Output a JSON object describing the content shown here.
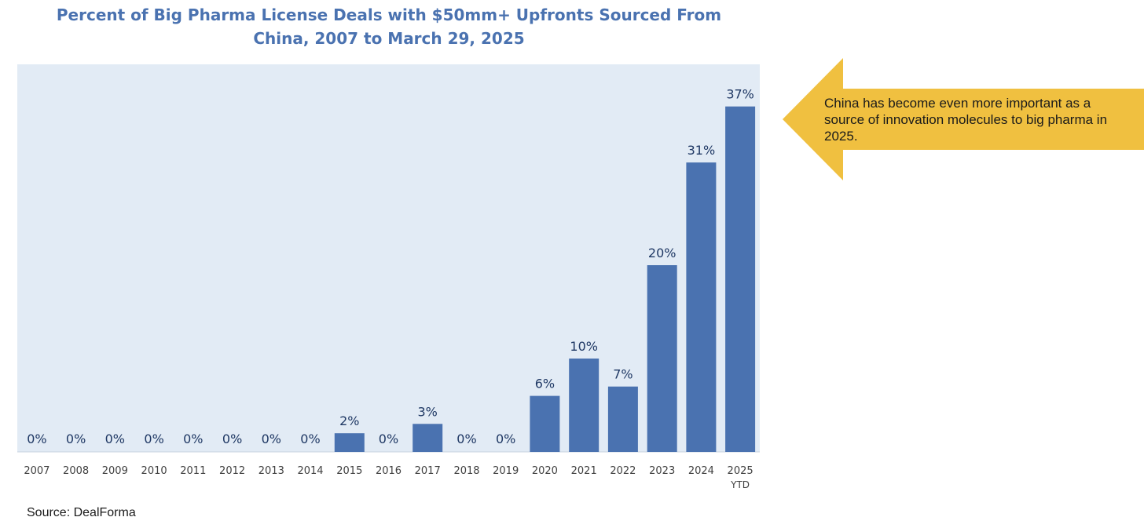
{
  "chart_data": {
    "type": "bar",
    "title": "Percent of Big Pharma License Deals with $50mm+ Upfronts Sourced From China, 2007 to March 29, 2025",
    "title_lines": [
      "Percent of Big Pharma License Deals with $50mm+ Upfronts Sourced From",
      "China, 2007 to March 29, 2025"
    ],
    "categories": [
      "2007",
      "2008",
      "2009",
      "2010",
      "2011",
      "2012",
      "2013",
      "2014",
      "2015",
      "2016",
      "2017",
      "2018",
      "2019",
      "2020",
      "2021",
      "2022",
      "2023",
      "2024",
      "2025\nYTD"
    ],
    "values": [
      0,
      0,
      0,
      0,
      0,
      0,
      0,
      0,
      2,
      0,
      3,
      0,
      0,
      6,
      10,
      7,
      20,
      31,
      37
    ],
    "data_labels": [
      "0%",
      "0%",
      "0%",
      "0%",
      "0%",
      "0%",
      "0%",
      "0%",
      "2%",
      "0%",
      "3%",
      "0%",
      "0%",
      "6%",
      "10%",
      "7%",
      "20%",
      "31%",
      "37%"
    ],
    "xlabel": "",
    "ylabel": "",
    "ylim": [
      0,
      40
    ],
    "grid": false,
    "colors": {
      "bar": "#4a72b0",
      "plot_bg": "#e2ebf5",
      "label": "#1f3864",
      "tick": "#404040"
    }
  },
  "callout": {
    "text": "China has become even more important as a source of innovation molecules to big pharma in 2025.",
    "color": "#f0c040"
  },
  "source": "Source: DealForma"
}
